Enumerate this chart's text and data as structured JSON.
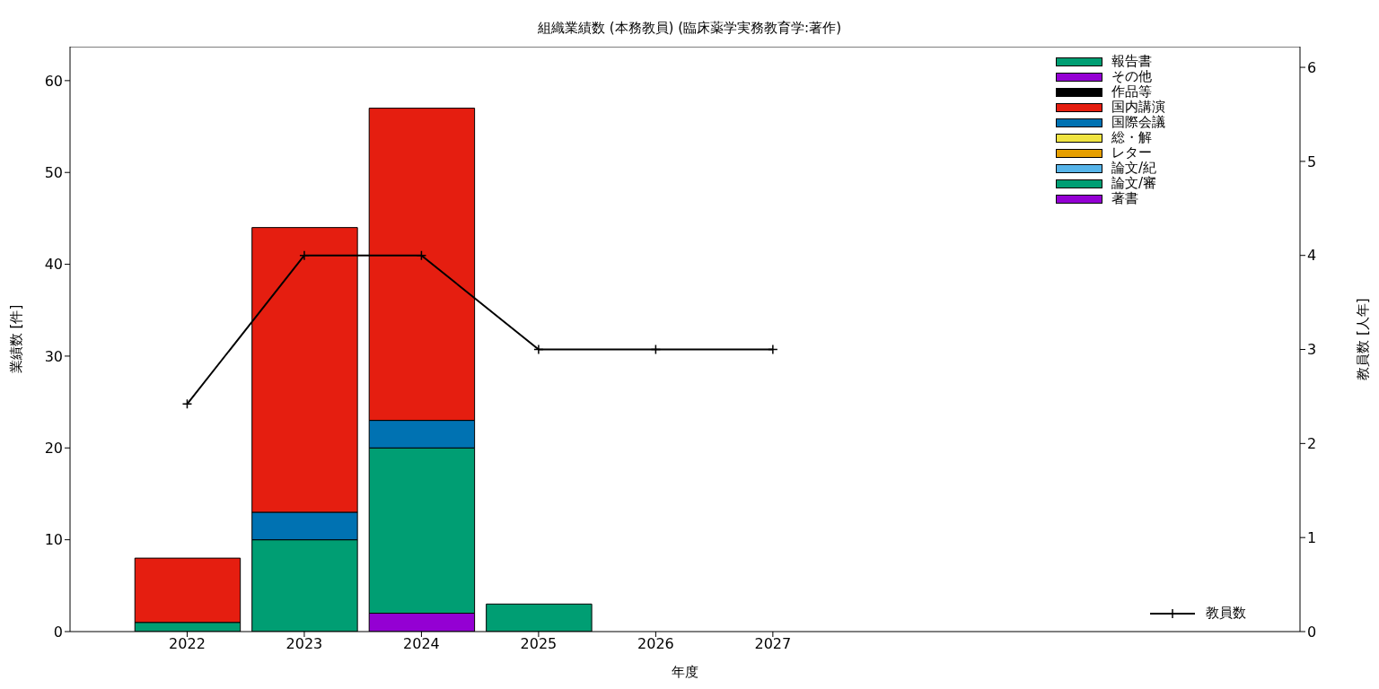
{
  "chart_data": {
    "type": "bar",
    "title": "組織業績数 (本務教員) (臨床薬学実務教育学:著作)",
    "xlabel": "年度",
    "ylabel": "業績数 [件]",
    "y2label": "教員数 [人年]",
    "x": [
      2022,
      2023,
      2024,
      2025,
      2026,
      2027
    ],
    "xlim": [
      2021,
      2031.5
    ],
    "xticks": [
      2022,
      2023,
      2024,
      2025,
      2026,
      2027
    ],
    "ylim": [
      0,
      63.7
    ],
    "yticks": [
      0,
      10,
      20,
      30,
      40,
      50,
      60
    ],
    "y2lim": [
      0,
      6.22
    ],
    "y2ticks": [
      0,
      1,
      2,
      3,
      4,
      5,
      6
    ],
    "stacked": true,
    "legend": "top right",
    "series": [
      {
        "name": "著書",
        "color": "#9400d3",
        "values": [
          0,
          0,
          2,
          0,
          null,
          null
        ]
      },
      {
        "name": "論文/審",
        "color": "#009e73",
        "values": [
          1,
          10,
          18,
          3,
          null,
          null
        ]
      },
      {
        "name": "論文/紀",
        "color": "#56b4e9",
        "values": [
          0,
          0,
          0,
          0,
          null,
          null
        ]
      },
      {
        "name": "レター",
        "color": "#e69f00",
        "values": [
          0,
          0,
          0,
          0,
          null,
          null
        ]
      },
      {
        "name": "総・解",
        "color": "#f0e442",
        "values": [
          0,
          0,
          0,
          0,
          null,
          null
        ]
      },
      {
        "name": "国際会議",
        "color": "#0072b2",
        "values": [
          0,
          3,
          3,
          0,
          null,
          null
        ]
      },
      {
        "name": "国内講演",
        "color": "#e51e10",
        "values": [
          7,
          31,
          34,
          0,
          null,
          null
        ]
      },
      {
        "name": "作品等",
        "color": "#000000",
        "values": [
          0,
          0,
          0,
          0,
          null,
          null
        ]
      },
      {
        "name": "その他",
        "color": "#9400d3",
        "values": [
          0,
          0,
          0,
          0,
          null,
          null
        ]
      },
      {
        "name": "報告書",
        "color": "#009e73",
        "values": [
          0,
          0,
          0,
          0,
          null,
          null
        ]
      },
      {
        "name": "教員数",
        "type": "line",
        "axis": "y2",
        "color": "#000000",
        "marker": "cross",
        "line_style": "solid",
        "values": [
          2.42,
          4,
          4,
          3,
          3,
          3
        ]
      }
    ]
  }
}
